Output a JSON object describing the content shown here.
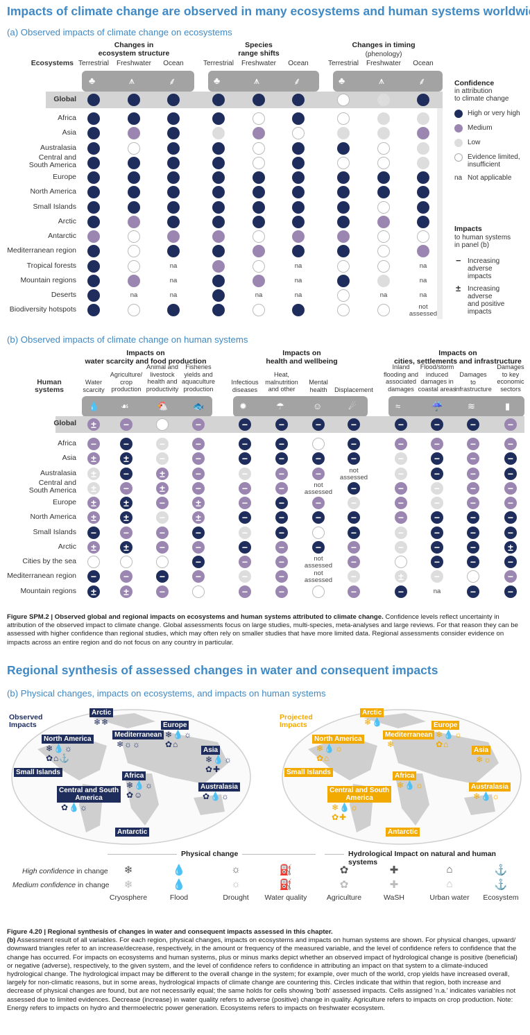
{
  "title": "Impacts of climate change are observed in many ecosystems and human systems worldwide",
  "section_a": {
    "title": "(a) Observed impacts of climate change on ecosystems",
    "row_header": "Ecosystems",
    "groups": [
      "Changes in\necosystem structure",
      "Species\nrange shifts",
      "Changes in timing"
    ],
    "group_sub": "(phenology)",
    "columns": [
      "Terrestrial",
      "Freshwater",
      "Ocean",
      "Terrestrial",
      "Freshwater",
      "Ocean",
      "Terrestrial",
      "Freshwater",
      "Ocean"
    ],
    "global_label": "Global",
    "global": [
      "H",
      "H",
      "H",
      "H",
      "H",
      "H",
      "E",
      "L",
      "H"
    ],
    "rows": [
      {
        "label": "Africa",
        "cells": [
          "H",
          "H",
          "H",
          "H",
          "E",
          "H",
          "E",
          "L",
          "L"
        ]
      },
      {
        "label": "Asia",
        "cells": [
          "H",
          "M",
          "H",
          "L",
          "M",
          "E",
          "L",
          "L",
          "M"
        ]
      },
      {
        "label": "Australasia",
        "cells": [
          "H",
          "E",
          "H",
          "H",
          "E",
          "H",
          "H",
          "E",
          "L"
        ]
      },
      {
        "label": "Central and\nSouth America",
        "cells": [
          "H",
          "H",
          "H",
          "H",
          "E",
          "H",
          "E",
          "E",
          "L"
        ]
      },
      {
        "label": "Europe",
        "cells": [
          "H",
          "H",
          "H",
          "H",
          "H",
          "H",
          "H",
          "H",
          "H"
        ]
      },
      {
        "label": "North America",
        "cells": [
          "H",
          "H",
          "H",
          "H",
          "H",
          "H",
          "H",
          "H",
          "H"
        ]
      },
      {
        "label": "Small Islands",
        "cells": [
          "H",
          "H",
          "H",
          "H",
          "H",
          "H",
          "H",
          "E",
          "H"
        ]
      },
      {
        "label": "Arctic",
        "cells": [
          "H",
          "M",
          "H",
          "H",
          "H",
          "H",
          "H",
          "M",
          "H"
        ]
      },
      {
        "label": "Antarctic",
        "cells": [
          "M",
          "E",
          "M",
          "M",
          "E",
          "M",
          "M",
          "E",
          "E"
        ]
      },
      {
        "label": "Mediterranean region",
        "cells": [
          "H",
          "E",
          "H",
          "H",
          "M",
          "H",
          "H",
          "E",
          "M"
        ]
      },
      {
        "label": "Tropical forests",
        "cells": [
          "H",
          "E",
          "na",
          "M",
          "E",
          "na",
          "E",
          "E",
          "na"
        ]
      },
      {
        "label": "Mountain regions",
        "cells": [
          "H",
          "M",
          "na",
          "H",
          "M",
          "na",
          "H",
          "L",
          "na"
        ]
      },
      {
        "label": "Deserts",
        "cells": [
          "H",
          "na",
          "na",
          "H",
          "na",
          "na",
          "E",
          "na",
          "na"
        ]
      },
      {
        "label": "Biodiversity hotspots",
        "cells": [
          "H",
          "E",
          "H",
          "H",
          "E",
          "H",
          "E",
          "E",
          "not assessed"
        ]
      }
    ],
    "na_text": "na",
    "not_assessed_text": "not\nassessed",
    "icons": [
      "tree-icon",
      "reeds-icon",
      "seaweed-icon",
      "tree-icon",
      "reeds-icon",
      "seaweed-icon",
      "tree-icon",
      "reeds-icon",
      "seaweed-icon"
    ]
  },
  "legend": {
    "confidence_title": "Confidence",
    "confidence_sub": "in attribution\nto climate change",
    "items": [
      {
        "label": "High or very high",
        "color": "#1f2d5c"
      },
      {
        "label": "Medium",
        "color": "#9a86b0"
      },
      {
        "label": "Low",
        "color": "#dddddd"
      },
      {
        "label": "Evidence limited,\ninsufficient",
        "color": "#ffffff"
      }
    ],
    "na_key": "na",
    "na_label": "Not applicable",
    "impacts_title": "Impacts",
    "impacts_sub": "to human systems\nin panel (b)",
    "minus_symbol": "−",
    "minus_label": "Increasing\nadverse\nimpacts",
    "pm_symbol": "±",
    "pm_label": "Increasing\nadverse\nand positive\nimpacts"
  },
  "section_b": {
    "title": "(b) Observed impacts of climate change on human systems",
    "row_header": "Human\nsystems",
    "groups": [
      "Impacts on\nwater scarcity and food production",
      "Impacts on\nhealth and wellbeing",
      "Impacts on\ncities, settlements and infrastructure"
    ],
    "columns": [
      "Water\nscarcity",
      "Agriculture/\ncrop\nproduction",
      "Animal and\nlivestock\nhealth and\nproductivity",
      "Fisheries\nyields and\naquaculture\nproduction",
      "Infectious\ndiseases",
      "Heat,\nmalnutrition\nand other",
      "Mental\nhealth",
      "Displacement",
      "Inland\nflooding and\nassociated\ndamages",
      "Flood/storm\ninduced\ndamages in\ncoastal areas",
      "Damages\nto\ninfrastructure",
      "Damages\nto key\neconomic\nsectors"
    ],
    "icons": [
      "droplet-icon",
      "wheat-icon",
      "chicken-icon",
      "fish-icon",
      "virus-icon",
      "thermometer-icon",
      "head-icon",
      "people-icon",
      "flood-icon",
      "storm-icon",
      "bridge-icon",
      "economy-icon"
    ],
    "global_label": "Global",
    "global": [
      "±M",
      "−M",
      "E",
      "−M",
      "−H",
      "−H",
      "−H",
      "−H",
      "−H",
      "−H",
      "−H",
      "−M"
    ],
    "rows": [
      {
        "label": "Africa",
        "cells": [
          "−M",
          "−H",
          "−L",
          "−M",
          "−H",
          "−H",
          "−E",
          "−H",
          "−M",
          "−M",
          "−M",
          "−M"
        ]
      },
      {
        "label": "Asia",
        "cells": [
          "±M",
          "±H",
          "−L",
          "−M",
          "−H",
          "−H",
          "−H",
          "−H",
          "−L",
          "−H",
          "−M",
          "−H"
        ]
      },
      {
        "label": "Australasia",
        "cells": [
          "±L",
          "−H",
          "±M",
          "−M",
          "−L",
          "−M",
          "−M",
          "not assessed",
          "−L",
          "−H",
          "−M",
          "−H"
        ]
      },
      {
        "label": "Central and\nSouth America",
        "cells": [
          "±L",
          "−M",
          "±M",
          "−M",
          "−M",
          "−M",
          "not assessed",
          "−H",
          "−M",
          "−L",
          "−M",
          "−M"
        ]
      },
      {
        "label": "Europe",
        "cells": [
          "±M",
          "±H",
          "−M",
          "±M",
          "−M",
          "−H",
          "−M",
          "−L",
          "−M",
          "−L",
          "−M",
          "−M"
        ]
      },
      {
        "label": "North America",
        "cells": [
          "±M",
          "±H",
          "−L",
          "±M",
          "−H",
          "−H",
          "−H",
          "−H",
          "−M",
          "−H",
          "−H",
          "−H"
        ]
      },
      {
        "label": "Small Islands",
        "cells": [
          "−H",
          "−M",
          "−M",
          "−H",
          "−L",
          "−H",
          "−E",
          "−H",
          "−L",
          "−H",
          "−H",
          "−H"
        ]
      },
      {
        "label": "Arctic",
        "cells": [
          "±M",
          "±H",
          "−M",
          "−M",
          "−H",
          "−M",
          "−H",
          "−M",
          "−L",
          "−H",
          "−H",
          "±H"
        ]
      },
      {
        "label": "Cities by the sea",
        "cells": [
          "E",
          "E",
          "E",
          "−H",
          "−M",
          "−M",
          "not assessed",
          "−M",
          "E",
          "−H",
          "−H",
          "−H"
        ]
      },
      {
        "label": "Mediterranean region",
        "cells": [
          "−H",
          "−M",
          "−H",
          "−M",
          "−L",
          "−M",
          "not assessed",
          "−L",
          "±L",
          "−L",
          "E",
          "−M"
        ]
      },
      {
        "label": "Mountain regions",
        "cells": [
          "±H",
          "±M",
          "−M",
          "E",
          "−M",
          "−M",
          "−E",
          "−M",
          "−H",
          "na",
          "−H",
          "−H"
        ]
      }
    ]
  },
  "caption1": {
    "bold": "Figure SPM.2 |  Observed global and regional impacts on ecosystems and human systems attributed to climate change.",
    "text": " Confidence levels reflect uncertainty in attribution of the observed impact to climate change. Global assessments focus on large studies, multi-species, meta-analyses and large reviews. For that reason they can be assessed with higher confidence than regional studies, which may often rely on smaller studies that have more limited data. Regional assessments consider evidence on impacts across an entire region and do not focus on any country in particular."
  },
  "regional": {
    "title": "Regional synthesis of assessed changes in water and consequent impacts",
    "subtitle": "(b) Physical changes, impacts on ecosystems, and impacts on human systems",
    "observed_label": "Observed\nImpacts",
    "projected_label": "Projected\nImpacts",
    "observed_color": "#1f2d5c",
    "projected_color": "#f2a900",
    "regions": [
      "Arctic",
      "Europe",
      "North America",
      "Mediterranean",
      "Asia",
      "Small Islands",
      "Africa",
      "Central and South\nAmerica",
      "Australasia",
      "Antarctic"
    ],
    "obs_icons": {
      "Arctic": "❄❄",
      "North America": "❄💧☼\n✿⌂⚓",
      "Mediterranean": "❄☼☼",
      "Europe": "❄💧☼\n✿⌂",
      "Asia": "❄💧☼\n✿✚",
      "Africa": "❄💧☼\n✿☺",
      "Central and South\nAmerica": "✿💧☼",
      "Australasia": "✿💧☼"
    },
    "proj_icons": {
      "Arctic": "❄💧",
      "North America": "❄💧☼\n✿⌂",
      "Mediterranean": "❄",
      "Europe": "❄💧☼\n✿⌂",
      "Asia": "❄☼",
      "Africa": "❄💧☼",
      "Central and South\nAmerica": "❄💧☼\n✿✚",
      "Australasia": "❄💧☼"
    }
  },
  "legend2": {
    "physical_title": "Physical change",
    "hydro_title": "Hydrological Impact on natural and human systems",
    "high_conf_prefix": "High confidence",
    "medium_conf_prefix": "Medium confidence",
    "conf_suffix": "in change",
    "items": [
      {
        "label": "Cryosphere",
        "icon": "snowflake-icon",
        "glyph": "❄"
      },
      {
        "label": "Flood",
        "icon": "droplet-icon",
        "glyph": "💧"
      },
      {
        "label": "Drought",
        "icon": "palm-icon",
        "glyph": "☼"
      },
      {
        "label": "Water quality",
        "icon": "tap-icon",
        "glyph": "⛽"
      },
      {
        "label": "Agriculture",
        "icon": "wheat-icon",
        "glyph": "✿"
      },
      {
        "label": "WaSH",
        "icon": "plus-icon",
        "glyph": "✚"
      },
      {
        "label": "Urban water",
        "icon": "house-icon",
        "glyph": "⌂"
      },
      {
        "label": "Ecosystem",
        "icon": "fish-icon",
        "glyph": "⚓"
      }
    ]
  },
  "caption2": {
    "bold": "Figure 4.20 |  Regional synthesis of changes in water and consequent impacts assessed in this chapter.",
    "lead": "(b)",
    "text": " Assessment result of all variables. For each region, physical changes, impacts on ecosystems and impacts on human systems are shown. For physical changes, upward/ downward triangles refer to an increase/decrease, respectively, in the amount or frequency of the measured variable, and the level of confidence refers to confidence that the change has occurred. For impacts on ecosystems and human systems, plus or minus marks depict whether an observed impact of hydrological change is positive (beneficial) or negative (adverse), respectively, to the given system, and the level of confidence refers to confidence in attributing an impact on that system to a climate-induced hydrological change. The hydrological impact may be different to the overall change in the system; for example, over much of the world, crop yields have increased overall, largely for non-climatic reasons, but in some areas, hydrological impacts of climate change are countering this. Circles indicate that within that region, both increase and decrease of physical changes are found, but are not necessarily equal; the same holds for cells showing 'both' assessed impacts. Cells assigned 'n.a.' indicates variables not assessed due to limited evidences. Decrease (increase) in water quality refers to adverse (positive) change in quality. Agriculture refers to impacts on crop production. Note: Energy refers to impacts on hydro and thermoelectric power generation. Ecosystems refers to impacts on freshwater ecosystem."
  }
}
